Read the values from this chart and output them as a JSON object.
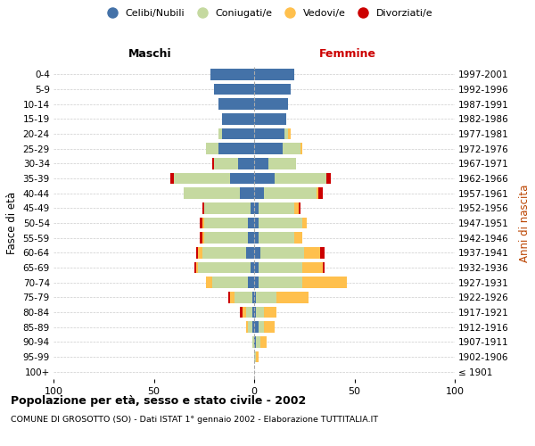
{
  "age_groups": [
    "100+",
    "95-99",
    "90-94",
    "85-89",
    "80-84",
    "75-79",
    "70-74",
    "65-69",
    "60-64",
    "55-59",
    "50-54",
    "45-49",
    "40-44",
    "35-39",
    "30-34",
    "25-29",
    "20-24",
    "15-19",
    "10-14",
    "5-9",
    "0-4"
  ],
  "birth_years": [
    "≤ 1901",
    "1902-1906",
    "1907-1911",
    "1912-1916",
    "1917-1921",
    "1922-1926",
    "1927-1931",
    "1932-1936",
    "1937-1941",
    "1942-1946",
    "1947-1951",
    "1952-1956",
    "1957-1961",
    "1962-1966",
    "1967-1971",
    "1972-1976",
    "1977-1981",
    "1982-1986",
    "1987-1991",
    "1992-1996",
    "1997-2001"
  ],
  "colors": {
    "celibi": "#4472a8",
    "coniugati": "#c5d9a0",
    "vedovi": "#ffc04d",
    "divorziati": "#cc0000"
  },
  "males": {
    "celibi": [
      0,
      0,
      0,
      1,
      1,
      1,
      3,
      2,
      4,
      3,
      3,
      2,
      7,
      12,
      8,
      18,
      16,
      16,
      18,
      20,
      22
    ],
    "coniugati": [
      0,
      0,
      1,
      2,
      3,
      9,
      18,
      26,
      22,
      22,
      22,
      23,
      28,
      28,
      12,
      6,
      2,
      0,
      0,
      0,
      0
    ],
    "vedovi": [
      0,
      0,
      0,
      1,
      2,
      2,
      3,
      1,
      2,
      1,
      1,
      0,
      0,
      0,
      0,
      0,
      0,
      0,
      0,
      0,
      0
    ],
    "divorziati": [
      0,
      0,
      0,
      0,
      1,
      1,
      0,
      1,
      1,
      1,
      1,
      1,
      0,
      2,
      1,
      0,
      0,
      0,
      0,
      0,
      0
    ]
  },
  "females": {
    "celibi": [
      0,
      0,
      1,
      2,
      1,
      1,
      2,
      2,
      3,
      2,
      2,
      2,
      5,
      10,
      7,
      14,
      15,
      16,
      17,
      18,
      20
    ],
    "coniugati": [
      0,
      1,
      2,
      3,
      4,
      10,
      22,
      22,
      22,
      18,
      22,
      18,
      26,
      26,
      14,
      9,
      2,
      0,
      0,
      0,
      0
    ],
    "vedovi": [
      0,
      1,
      3,
      5,
      6,
      16,
      22,
      10,
      8,
      4,
      2,
      2,
      1,
      0,
      0,
      1,
      1,
      0,
      0,
      0,
      0
    ],
    "divorziati": [
      0,
      0,
      0,
      0,
      0,
      0,
      0,
      1,
      2,
      0,
      0,
      1,
      2,
      2,
      0,
      0,
      0,
      0,
      0,
      0,
      0
    ]
  },
  "xlim": [
    -100,
    100
  ],
  "xticks": [
    -100,
    -50,
    0,
    50,
    100
  ],
  "xticklabels": [
    "100",
    "50",
    "0",
    "50",
    "100"
  ],
  "title": "Popolazione per età, sesso e stato civile - 2002",
  "subtitle": "COMUNE DI GROSOTTO (SO) - Dati ISTAT 1° gennaio 2002 - Elaborazione TUTTITALIA.IT",
  "ylabel": "Fasce di età",
  "ylabel2": "Anni di nascita",
  "background_color": "#ffffff",
  "grid_color": "#cccccc"
}
